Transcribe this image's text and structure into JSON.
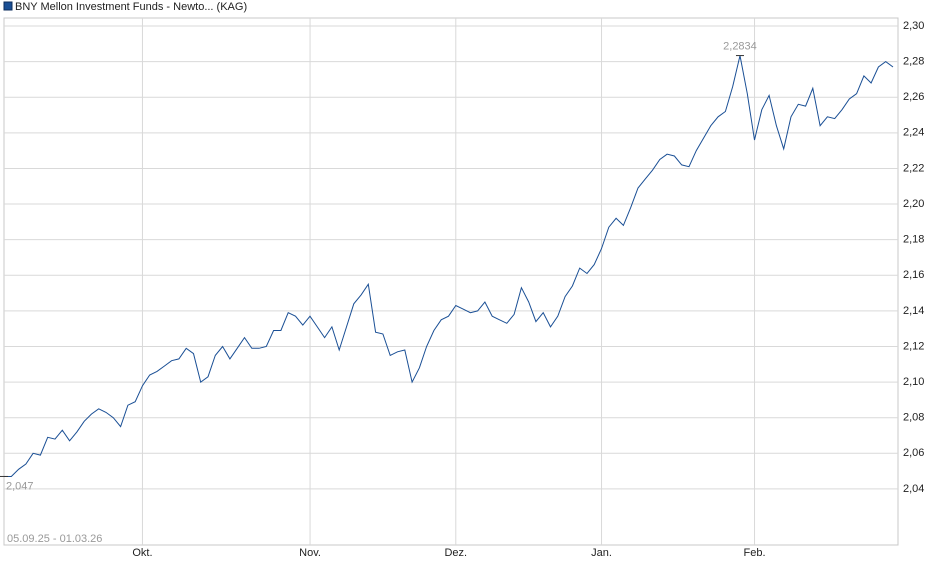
{
  "chart_data": {
    "type": "line",
    "title": "BNY Mellon Investment Funds - Newto... (KAG)",
    "date_range": "05.09.25 - 01.03.26",
    "min_label": "2,047",
    "max_label": "2,2834",
    "categories": [
      null,
      null,
      null,
      null,
      null,
      null,
      null,
      null,
      null,
      null,
      null,
      null,
      null,
      null,
      null,
      null,
      null,
      null,
      null,
      "Okt.",
      null,
      null,
      null,
      null,
      null,
      null,
      null,
      null,
      null,
      null,
      null,
      null,
      null,
      null,
      null,
      null,
      null,
      null,
      null,
      null,
      null,
      null,
      "Nov.",
      null,
      null,
      null,
      null,
      null,
      null,
      null,
      null,
      null,
      null,
      null,
      null,
      null,
      null,
      null,
      null,
      null,
      null,
      null,
      "Dez.",
      null,
      null,
      null,
      null,
      null,
      null,
      null,
      null,
      null,
      null,
      null,
      null,
      null,
      null,
      null,
      null,
      null,
      null,
      null,
      "Jan.",
      null,
      null,
      null,
      null,
      null,
      null,
      null,
      null,
      null,
      null,
      null,
      null,
      null,
      null,
      null,
      null,
      null,
      null,
      null,
      null,
      "Feb.",
      null,
      null,
      null,
      null,
      null,
      null,
      null,
      null,
      null,
      null,
      null,
      null,
      null,
      null,
      null,
      null,
      null,
      null,
      null
    ],
    "series": [
      {
        "name": "BNY Mellon Investment Funds - Newto... (KAG)",
        "color": "#1a4f95",
        "values": [
          2.047,
          2.047,
          2.051,
          2.054,
          2.06,
          2.059,
          2.069,
          2.068,
          2.073,
          2.067,
          2.072,
          2.078,
          2.082,
          2.085,
          2.083,
          2.08,
          2.075,
          2.087,
          2.089,
          2.098,
          2.104,
          2.106,
          2.109,
          2.112,
          2.113,
          2.119,
          2.116,
          2.1,
          2.103,
          2.115,
          2.12,
          2.113,
          2.119,
          2.125,
          2.119,
          2.119,
          2.12,
          2.129,
          2.129,
          2.139,
          2.137,
          2.132,
          2.137,
          2.131,
          2.125,
          2.131,
          2.118,
          2.131,
          2.144,
          2.149,
          2.155,
          2.128,
          2.127,
          2.115,
          2.117,
          2.118,
          2.1,
          2.108,
          2.12,
          2.129,
          2.135,
          2.137,
          2.143,
          2.141,
          2.139,
          2.14,
          2.145,
          2.137,
          2.135,
          2.133,
          2.138,
          2.153,
          2.145,
          2.134,
          2.139,
          2.131,
          2.137,
          2.148,
          2.154,
          2.164,
          2.161,
          2.166,
          2.175,
          2.187,
          2.192,
          2.188,
          2.198,
          2.209,
          2.214,
          2.219,
          2.225,
          2.228,
          2.227,
          2.222,
          2.221,
          2.23,
          2.237,
          2.244,
          2.249,
          2.252,
          2.266,
          2.2834,
          2.262,
          2.236,
          2.253,
          2.261,
          2.244,
          2.231,
          2.249,
          2.256,
          2.255,
          2.265,
          2.244,
          2.249,
          2.248,
          2.253,
          2.259,
          2.262,
          2.272,
          2.268,
          2.277,
          2.28,
          2.277
        ]
      }
    ],
    "ylim": [
      2.0085,
      2.3045
    ],
    "yticks": [
      {
        "value": 2.04,
        "label": "2,04"
      },
      {
        "value": 2.06,
        "label": "2,06"
      },
      {
        "value": 2.08,
        "label": "2,08"
      },
      {
        "value": 2.1,
        "label": "2,10"
      },
      {
        "value": 2.12,
        "label": "2,12"
      },
      {
        "value": 2.14,
        "label": "2,14"
      },
      {
        "value": 2.16,
        "label": "2,16"
      },
      {
        "value": 2.18,
        "label": "2,18"
      },
      {
        "value": 2.2,
        "label": "2,20"
      },
      {
        "value": 2.22,
        "label": "2,22"
      },
      {
        "value": 2.24,
        "label": "2,24"
      },
      {
        "value": 2.26,
        "label": "2,26"
      },
      {
        "value": 2.28,
        "label": "2,28"
      },
      {
        "value": 2.3,
        "label": "2,30"
      }
    ],
    "grid": true
  }
}
